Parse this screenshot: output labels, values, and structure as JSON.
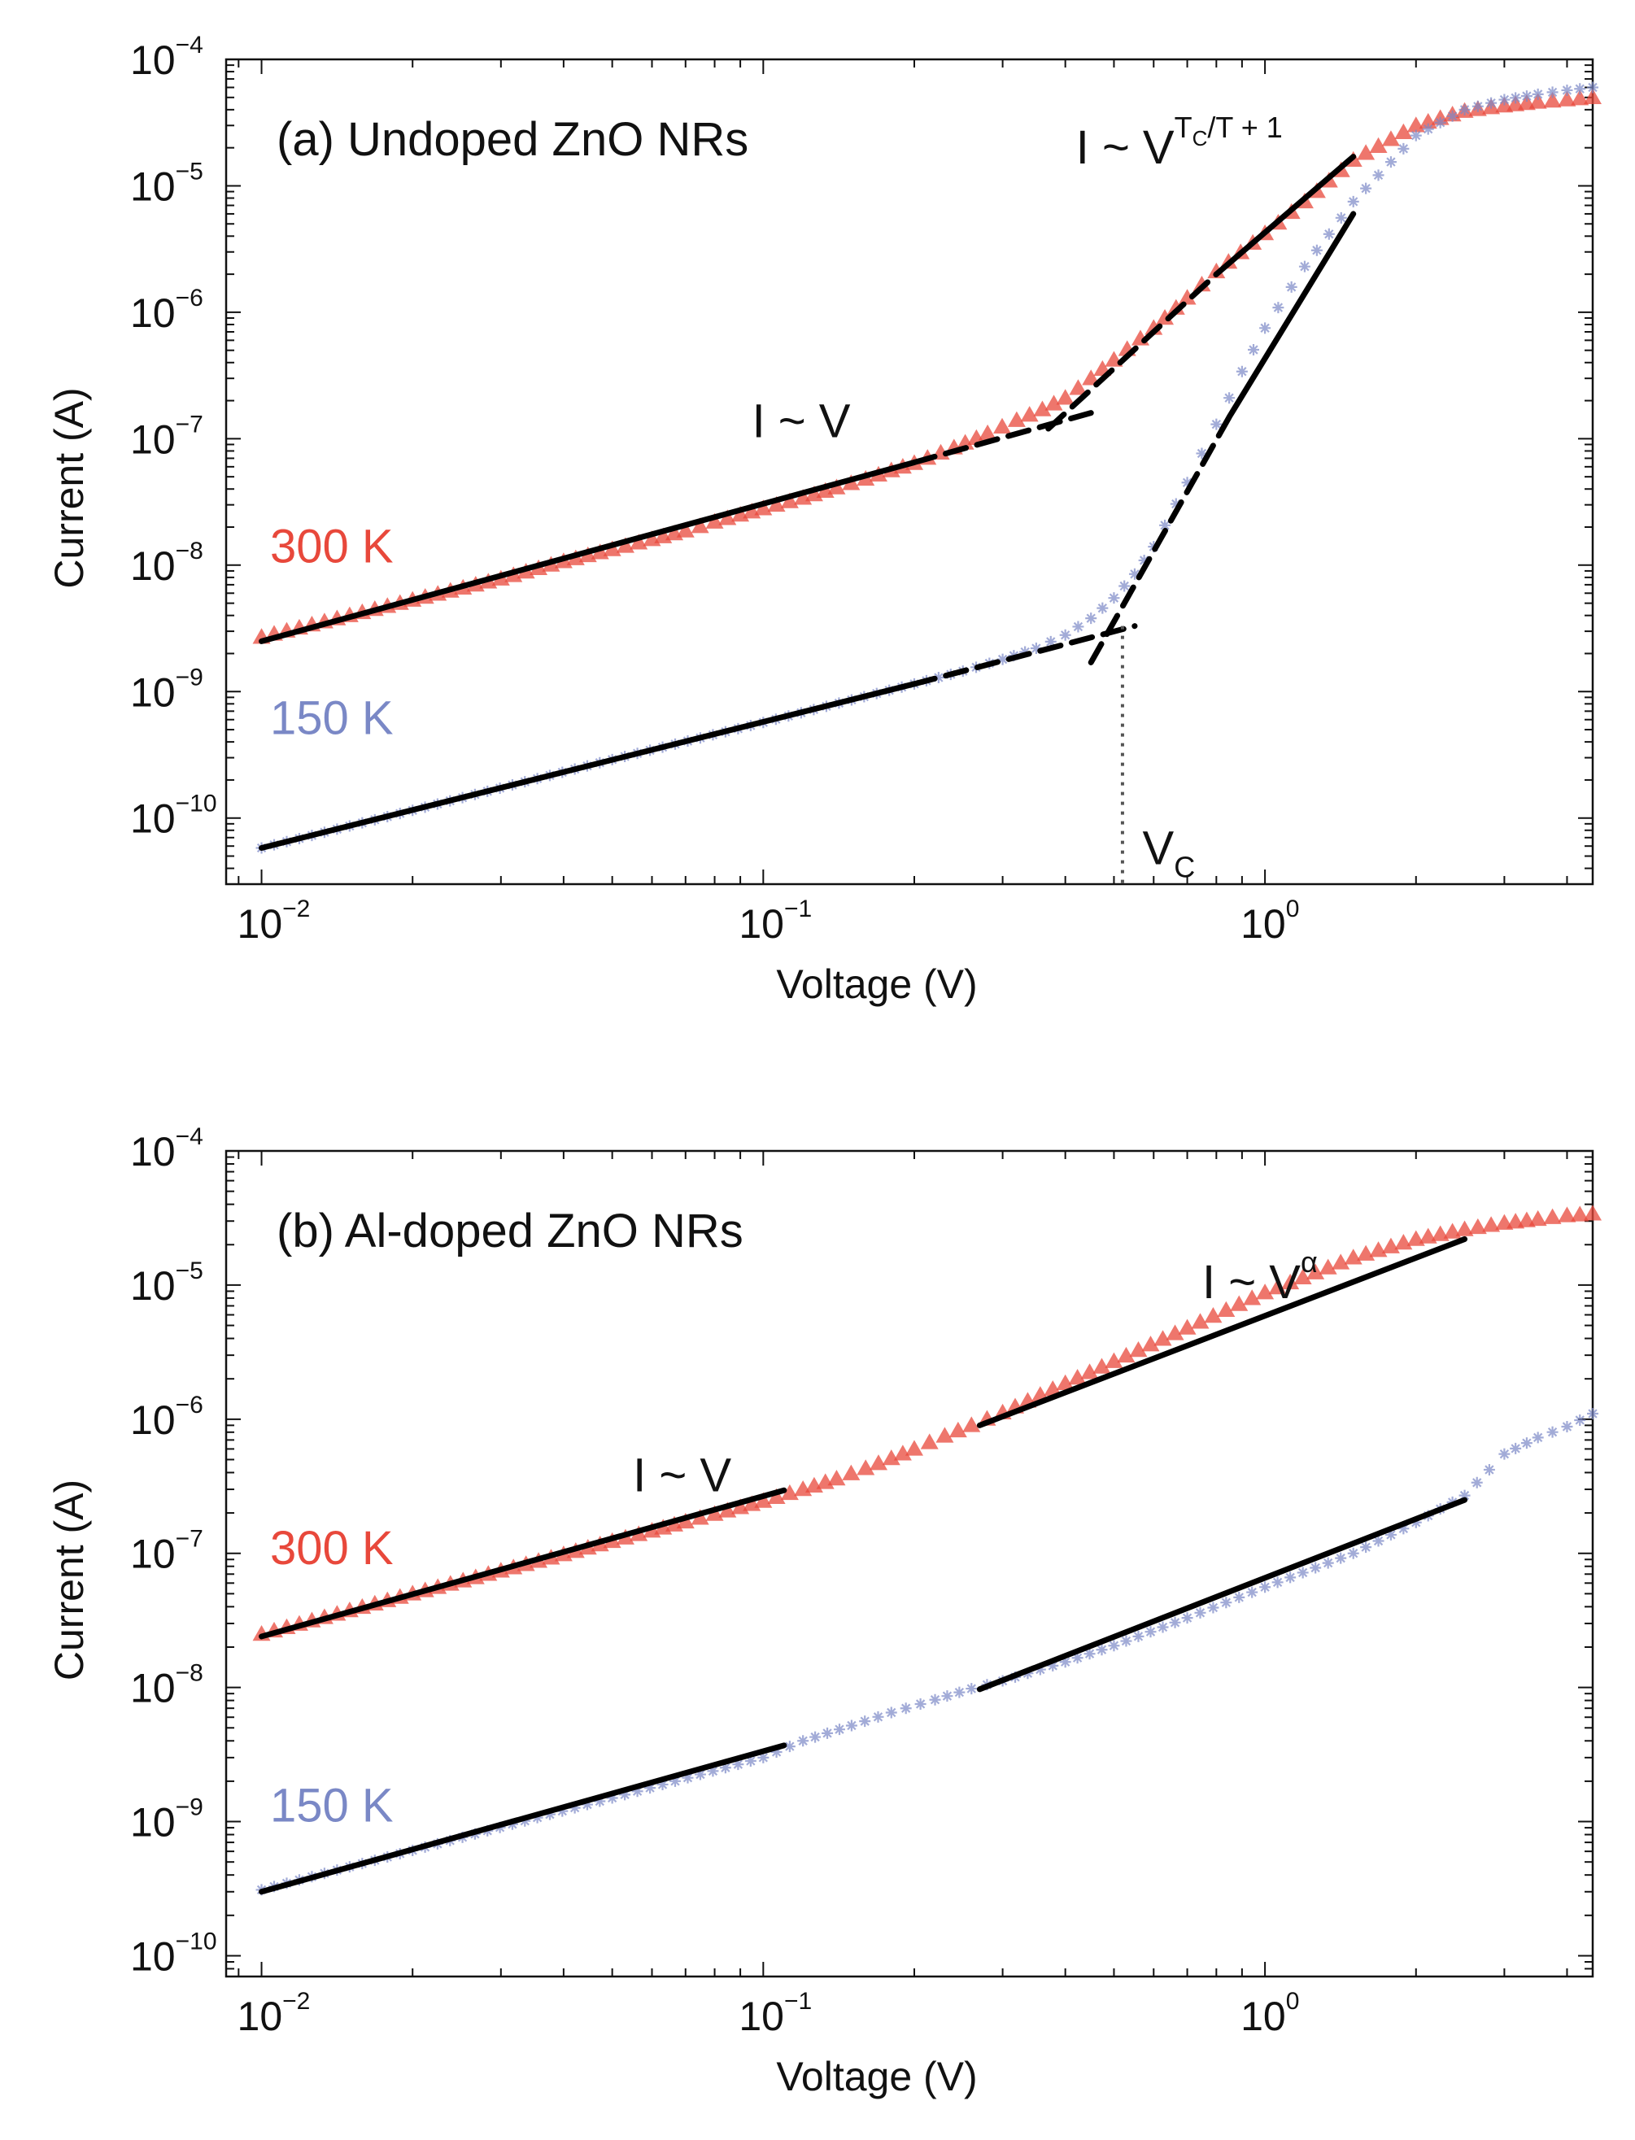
{
  "colors": {
    "hot": "#e8483b",
    "cold": "#7a88c6",
    "fit": "#000000",
    "axis": "#111111"
  },
  "chart_data": [
    {
      "type": "scatter",
      "panel": "a",
      "title": "(a) Undoped ZnO NRs",
      "xlabel": "Voltage (V)",
      "ylabel": "Current (A)",
      "xscale": "log",
      "yscale": "log",
      "xlim": [
        0.0085,
        4.5
      ],
      "ylim": [
        3e-11,
        0.0001
      ],
      "xticks": [
        {
          "base": "10",
          "exp": "−2"
        },
        {
          "base": "10",
          "exp": "−1"
        },
        {
          "base": "10",
          "exp": "0"
        }
      ],
      "yticks": [
        {
          "base": "10",
          "exp": "−4"
        },
        {
          "base": "10",
          "exp": "−5"
        },
        {
          "base": "10",
          "exp": "−6"
        },
        {
          "base": "10",
          "exp": "−7"
        },
        {
          "base": "10",
          "exp": "−8"
        },
        {
          "base": "10",
          "exp": "−9"
        },
        {
          "base": "10",
          "exp": "−10"
        }
      ],
      "series": [
        {
          "name": "300 K",
          "color": "hot",
          "marker": "triangle",
          "x": [
            0.01,
            0.02,
            0.03,
            0.04,
            0.05,
            0.06,
            0.07,
            0.08,
            0.09,
            0.1,
            0.12,
            0.14,
            0.16,
            0.18,
            0.2,
            0.24,
            0.28,
            0.32,
            0.36,
            0.4,
            0.45,
            0.5,
            0.6,
            0.7,
            0.8,
            1.0,
            1.2,
            1.5,
            2.0,
            2.5,
            3.0,
            3.5,
            4.0,
            4.5
          ],
          "values": [
            2.7e-09,
            5.3e-09,
            7.8e-09,
            1.07e-08,
            1.33e-08,
            1.6e-08,
            1.87e-08,
            2.2e-08,
            2.5e-08,
            2.8e-08,
            3.4e-08,
            4.1e-08,
            4.8e-08,
            5.6e-08,
            6.4e-08,
            8.5e-08,
            1.1e-07,
            1.4e-07,
            1.7e-07,
            2.1e-07,
            3e-07,
            4.2e-07,
            7.5e-07,
            1.3e-06,
            2.1e-06,
            4.2e-06,
            7.5e-06,
            1.6e-05,
            3e-05,
            3.9e-05,
            4.3e-05,
            4.6e-05,
            4.8e-05,
            5e-05
          ]
        },
        {
          "name": "150 K",
          "color": "cold",
          "marker": "star",
          "x": [
            0.01,
            0.02,
            0.05,
            0.1,
            0.15,
            0.2,
            0.25,
            0.3,
            0.35,
            0.4,
            0.45,
            0.5,
            0.55,
            0.6,
            0.7,
            0.8,
            0.9,
            1.0,
            1.2,
            1.5,
            2.0,
            2.5,
            3.0,
            3.5,
            4.0,
            4.5
          ],
          "values": [
            5.8e-11,
            1.15e-10,
            2.9e-10,
            5.7e-10,
            8.6e-10,
            1.15e-09,
            1.45e-09,
            1.8e-09,
            2.2e-09,
            2.8e-09,
            3.8e-09,
            5.5e-09,
            8.5e-09,
            1.4e-08,
            4.5e-08,
            1.3e-07,
            3.4e-07,
            7.5e-07,
            2.3e-06,
            7.5e-06,
            2.5e-05,
            4e-05,
            4.8e-05,
            5.3e-05,
            5.7e-05,
            6e-05
          ]
        }
      ],
      "fits": [
        {
          "name": "300 K ohmic fit",
          "style": "solid",
          "x": [
            0.01,
            0.2
          ],
          "values": [
            2.5e-09,
            6.5e-08
          ]
        },
        {
          "name": "300 K ohmic extension",
          "style": "dashed",
          "x": [
            0.2,
            0.45
          ],
          "values": [
            6.5e-08,
            1.6e-07
          ]
        },
        {
          "name": "300 K power-law extension",
          "style": "dashed",
          "x": [
            0.37,
            0.8
          ],
          "values": [
            1.2e-07,
            2e-06
          ]
        },
        {
          "name": "300 K power-law fit",
          "style": "solid",
          "x": [
            0.8,
            1.5
          ],
          "values": [
            2e-06,
            1.7e-05
          ]
        },
        {
          "name": "150 K ohmic fit",
          "style": "solid",
          "x": [
            0.01,
            0.2
          ],
          "values": [
            5.8e-11,
            1.15e-09
          ]
        },
        {
          "name": "150 K ohmic extension",
          "style": "dashed",
          "x": [
            0.2,
            0.55
          ],
          "values": [
            1.15e-09,
            3.3e-09
          ]
        },
        {
          "name": "150 K power-law extension",
          "style": "dashed",
          "x": [
            0.45,
            0.85
          ],
          "values": [
            1.7e-09,
            1.5e-07
          ]
        },
        {
          "name": "150 K power-law fit",
          "style": "solid",
          "x": [
            0.85,
            1.5
          ],
          "values": [
            1.5e-07,
            6e-06
          ]
        }
      ],
      "vc_marker": {
        "x": 0.52,
        "from": 3.3e-09,
        "to": 3e-11
      },
      "annotations": [
        {
          "text": "I ~ V",
          "x": 0.095,
          "y": 1.03e-07,
          "kind": "plain"
        },
        {
          "base": "I ~ V",
          "sup_a": "T",
          "sub": "C",
          "sup_b": "/T + 1",
          "x": 0.42,
          "y": 1.5e-05,
          "kind": "power"
        },
        {
          "base": "V",
          "sub": "C",
          "x": 0.57,
          "y": 4.3e-11,
          "kind": "subscript"
        },
        {
          "text": "300 K",
          "x": 0.0104,
          "y": 1.05e-08,
          "color": "hot",
          "kind": "temp"
        },
        {
          "text": "150 K",
          "x": 0.0104,
          "y": 4.6e-10,
          "color": "cold",
          "kind": "temp"
        }
      ]
    },
    {
      "type": "scatter",
      "panel": "b",
      "title": "(b) Al-doped ZnO NRs",
      "xlabel": "Voltage (V)",
      "ylabel": "Current (A)",
      "xscale": "log",
      "yscale": "log",
      "xlim": [
        0.0085,
        4.5
      ],
      "ylim": [
        7e-11,
        0.0001
      ],
      "xticks": [
        {
          "base": "10",
          "exp": "−2"
        },
        {
          "base": "10",
          "exp": "−1"
        },
        {
          "base": "10",
          "exp": "0"
        }
      ],
      "yticks": [
        {
          "base": "10",
          "exp": "−4"
        },
        {
          "base": "10",
          "exp": "−5"
        },
        {
          "base": "10",
          "exp": "−6"
        },
        {
          "base": "10",
          "exp": "−7"
        },
        {
          "base": "10",
          "exp": "−8"
        },
        {
          "base": "10",
          "exp": "−9"
        },
        {
          "base": "10",
          "exp": "−10"
        }
      ],
      "series": [
        {
          "name": "300 K",
          "color": "hot",
          "marker": "triangle",
          "x": [
            0.01,
            0.02,
            0.03,
            0.04,
            0.05,
            0.06,
            0.07,
            0.08,
            0.09,
            0.1,
            0.12,
            0.14,
            0.16,
            0.18,
            0.2,
            0.23,
            0.26,
            0.3,
            0.4,
            0.5,
            0.7,
            1.0,
            1.5,
            2.0,
            2.5,
            3.0,
            3.5,
            4.0,
            4.5
          ],
          "values": [
            2.5e-08,
            5e-08,
            7.4e-08,
            9.8e-08,
            1.23e-07,
            1.47e-07,
            1.72e-07,
            1.96e-07,
            2.2e-07,
            2.45e-07,
            3e-07,
            3.6e-07,
            4.3e-07,
            5.1e-07,
            6e-07,
            7.5e-07,
            9e-07,
            1.12e-06,
            1.85e-06,
            2.7e-06,
            4.8e-06,
            8.8e-06,
            1.6e-05,
            2.2e-05,
            2.6e-05,
            2.9e-05,
            3.1e-05,
            3.3e-05,
            3.4e-05
          ]
        },
        {
          "name": "150 K",
          "color": "cold",
          "marker": "star",
          "x": [
            0.01,
            0.02,
            0.05,
            0.1,
            0.12,
            0.15,
            0.18,
            0.22,
            0.26,
            0.3,
            0.4,
            0.5,
            0.7,
            1.0,
            1.5,
            2.0,
            2.5,
            2.8,
            3.0,
            3.5,
            4.0,
            4.5
          ],
          "values": [
            3.1e-10,
            6.1e-10,
            1.5e-09,
            3e-09,
            4e-09,
            5.2e-09,
            6.5e-09,
            8.1e-09,
            9.8e-09,
            1.12e-08,
            1.55e-08,
            2.05e-08,
            3.3e-08,
            5.6e-08,
            1e-07,
            1.7e-07,
            2.7e-07,
            4.2e-07,
            5.5e-07,
            7.3e-07,
            8.8e-07,
            1.1e-06
          ]
        }
      ],
      "fits": [
        {
          "name": "300 K ohmic fit",
          "style": "solid",
          "x": [
            0.01,
            0.11
          ],
          "values": [
            2.4e-08,
            2.95e-07
          ]
        },
        {
          "name": "300 K power-law fit",
          "style": "solid",
          "x": [
            0.27,
            2.5
          ],
          "values": [
            9e-07,
            2.2e-05
          ]
        },
        {
          "name": "150 K ohmic fit",
          "style": "solid",
          "x": [
            0.01,
            0.11
          ],
          "values": [
            3e-10,
            3.7e-09
          ]
        },
        {
          "name": "150 K power-law fit",
          "style": "solid",
          "x": [
            0.27,
            2.5
          ],
          "values": [
            9.7e-09,
            2.5e-07
          ]
        }
      ],
      "annotations": [
        {
          "text": "I ~ V",
          "x": 0.055,
          "y": 2.9e-07,
          "kind": "plain"
        },
        {
          "base": "I ~ V",
          "sup_a": "α",
          "x": 0.75,
          "y": 8e-06,
          "kind": "power"
        },
        {
          "text": "300 K",
          "x": 0.0104,
          "y": 8.3e-08,
          "color": "hot",
          "kind": "temp"
        },
        {
          "text": "150 K",
          "x": 0.0104,
          "y": 1e-09,
          "color": "cold",
          "kind": "temp"
        }
      ]
    }
  ]
}
